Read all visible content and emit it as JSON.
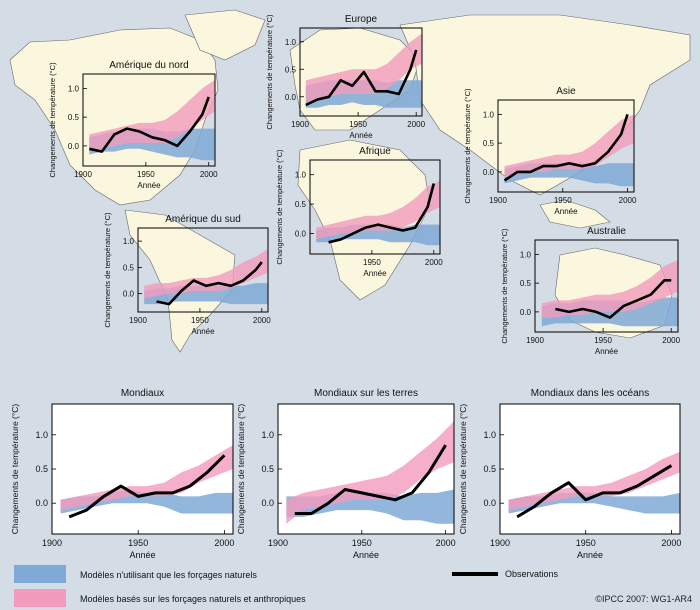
{
  "colors": {
    "background": "#d4dde6",
    "land": "#fbf7df",
    "natural_band": "#7fa9d6",
    "anthro_band": "#f29bbd",
    "observations": "#000000"
  },
  "legend": {
    "natural": "Modèles n'utilisant que les forçages naturels",
    "anthro": "Modèles basés sur les forçages naturels et anthropiques",
    "observations": "Observations"
  },
  "credit": "©IPCC  2007: WG1-AR4",
  "chart_data": [
    {
      "type": "area",
      "title": "Amérique du nord",
      "xlabel": "Année",
      "ylabel": "Changements de température (°C)",
      "xlim": [
        1900,
        2005
      ],
      "ylim": [
        -0.35,
        1.25
      ],
      "xticks": [
        1900,
        1950,
        2000
      ],
      "yticks": [
        0.0,
        0.5,
        1.0
      ],
      "x": [
        1905,
        1915,
        1925,
        1935,
        1945,
        1955,
        1965,
        1975,
        1985,
        1995,
        2005
      ],
      "natural": {
        "low": [
          -0.15,
          -0.1,
          -0.1,
          -0.05,
          -0.05,
          -0.1,
          -0.15,
          -0.2,
          -0.2,
          -0.25,
          -0.25
        ],
        "high": [
          0.15,
          0.2,
          0.25,
          0.3,
          0.3,
          0.3,
          0.25,
          0.25,
          0.3,
          0.3,
          0.3
        ]
      },
      "anthro": {
        "low": [
          -0.1,
          -0.05,
          0.0,
          0.05,
          0.05,
          0.05,
          0.05,
          0.15,
          0.3,
          0.45,
          0.6
        ],
        "high": [
          0.2,
          0.25,
          0.3,
          0.35,
          0.4,
          0.4,
          0.45,
          0.6,
          0.8,
          1.0,
          1.15
        ]
      },
      "observations": {
        "x": [
          1905,
          1915,
          1925,
          1935,
          1945,
          1955,
          1965,
          1975,
          1985,
          1995,
          2000
        ],
        "y": [
          -0.05,
          -0.1,
          0.2,
          0.3,
          0.25,
          0.15,
          0.1,
          0.0,
          0.25,
          0.55,
          0.85
        ]
      }
    },
    {
      "type": "area",
      "title": "Europe",
      "xlabel": "Année",
      "ylabel": "Changements de température (°C)",
      "xlim": [
        1900,
        2005
      ],
      "ylim": [
        -0.35,
        1.25
      ],
      "xticks": [
        1900,
        1950,
        2000
      ],
      "yticks": [
        0.0,
        0.5,
        1.0
      ],
      "x": [
        1905,
        1915,
        1925,
        1935,
        1945,
        1955,
        1965,
        1975,
        1985,
        1995,
        2005
      ],
      "natural": {
        "low": [
          -0.2,
          -0.2,
          -0.15,
          -0.15,
          -0.1,
          -0.15,
          -0.15,
          -0.2,
          -0.2,
          -0.2,
          -0.2
        ],
        "high": [
          0.2,
          0.25,
          0.3,
          0.3,
          0.3,
          0.3,
          0.3,
          0.25,
          0.3,
          0.3,
          0.3
        ]
      },
      "anthro": {
        "low": [
          -0.1,
          -0.05,
          0.0,
          0.05,
          0.05,
          0.05,
          0.05,
          0.15,
          0.3,
          0.5,
          0.6
        ],
        "high": [
          0.3,
          0.35,
          0.4,
          0.45,
          0.5,
          0.5,
          0.5,
          0.6,
          0.8,
          1.0,
          1.15
        ]
      },
      "observations": {
        "x": [
          1905,
          1915,
          1925,
          1935,
          1945,
          1955,
          1965,
          1975,
          1985,
          1995,
          2000
        ],
        "y": [
          -0.15,
          -0.05,
          0.0,
          0.3,
          0.2,
          0.45,
          0.1,
          0.1,
          0.05,
          0.5,
          0.85
        ]
      }
    },
    {
      "type": "area",
      "title": "Asie",
      "xlabel": "Année",
      "ylabel": "Changements de température (°C)",
      "xlim": [
        1900,
        2005
      ],
      "ylim": [
        -0.35,
        1.25
      ],
      "xticks": [
        1900,
        1950,
        2000
      ],
      "yticks": [
        0.0,
        0.5,
        1.0
      ],
      "x": [
        1905,
        1915,
        1925,
        1935,
        1945,
        1955,
        1965,
        1975,
        1985,
        1995,
        2005
      ],
      "natural": {
        "low": [
          -0.2,
          -0.15,
          -0.1,
          -0.1,
          -0.1,
          -0.1,
          -0.15,
          -0.2,
          -0.2,
          -0.25,
          -0.25
        ],
        "high": [
          0.05,
          0.1,
          0.15,
          0.15,
          0.15,
          0.15,
          0.15,
          0.1,
          0.15,
          0.15,
          0.15
        ]
      },
      "anthro": {
        "low": [
          -0.1,
          -0.05,
          0.0,
          0.0,
          0.05,
          0.05,
          0.05,
          0.1,
          0.25,
          0.4,
          0.5
        ],
        "high": [
          0.1,
          0.15,
          0.2,
          0.25,
          0.3,
          0.3,
          0.35,
          0.5,
          0.7,
          0.9,
          1.0
        ]
      },
      "observations": {
        "x": [
          1905,
          1915,
          1925,
          1935,
          1945,
          1955,
          1965,
          1975,
          1985,
          1995,
          2000
        ],
        "y": [
          -0.15,
          0.0,
          0.0,
          0.1,
          0.1,
          0.15,
          0.1,
          0.15,
          0.35,
          0.65,
          1.0
        ]
      }
    },
    {
      "type": "area",
      "title": "Afrique",
      "xlabel": "Année",
      "ylabel": "Changements de température (°C)",
      "xlim": [
        1900,
        2005
      ],
      "ylim": [
        -0.35,
        1.25
      ],
      "xticks": [
        1950,
        2000
      ],
      "yticks": [
        0.0,
        0.5,
        1.0
      ],
      "x": [
        1905,
        1915,
        1925,
        1935,
        1945,
        1955,
        1965,
        1975,
        1985,
        1995,
        2005
      ],
      "natural": {
        "low": [
          -0.15,
          -0.15,
          -0.1,
          -0.1,
          -0.1,
          -0.1,
          -0.15,
          -0.15,
          -0.15,
          -0.2,
          -0.2
        ],
        "high": [
          0.05,
          0.1,
          0.1,
          0.15,
          0.15,
          0.15,
          0.15,
          0.1,
          0.15,
          0.15,
          0.15
        ]
      },
      "anthro": {
        "low": [
          -0.1,
          -0.05,
          0.0,
          0.0,
          0.05,
          0.05,
          0.05,
          0.1,
          0.2,
          0.35,
          0.45
        ],
        "high": [
          0.1,
          0.15,
          0.2,
          0.25,
          0.3,
          0.3,
          0.35,
          0.45,
          0.6,
          0.8,
          0.9
        ]
      },
      "observations": {
        "x": [
          1915,
          1925,
          1935,
          1945,
          1955,
          1965,
          1975,
          1985,
          1995,
          2000
        ],
        "y": [
          -0.15,
          -0.1,
          0.0,
          0.1,
          0.15,
          0.1,
          0.05,
          0.1,
          0.45,
          0.85
        ]
      }
    },
    {
      "type": "area",
      "title": "Amérique du sud",
      "xlabel": "Année",
      "ylabel": "Changements de température (°C)",
      "xlim": [
        1900,
        2005
      ],
      "ylim": [
        -0.35,
        1.25
      ],
      "xticks": [
        1900,
        1950,
        2000
      ],
      "yticks": [
        0.0,
        0.5,
        1.0
      ],
      "x": [
        1905,
        1915,
        1925,
        1935,
        1945,
        1955,
        1965,
        1975,
        1985,
        1995,
        2005
      ],
      "natural": {
        "low": [
          -0.2,
          -0.2,
          -0.15,
          -0.15,
          -0.15,
          -0.15,
          -0.15,
          -0.2,
          -0.2,
          -0.2,
          -0.2
        ],
        "high": [
          0.05,
          0.1,
          0.1,
          0.15,
          0.15,
          0.15,
          0.15,
          0.15,
          0.15,
          0.2,
          0.2
        ]
      },
      "anthro": {
        "low": [
          -0.1,
          -0.05,
          0.0,
          0.0,
          0.05,
          0.05,
          0.05,
          0.1,
          0.2,
          0.3,
          0.4
        ],
        "high": [
          0.15,
          0.2,
          0.2,
          0.25,
          0.3,
          0.3,
          0.35,
          0.45,
          0.6,
          0.7,
          0.85
        ]
      },
      "observations": {
        "x": [
          1915,
          1925,
          1935,
          1945,
          1955,
          1965,
          1975,
          1985,
          1995,
          2000
        ],
        "y": [
          -0.15,
          -0.2,
          0.05,
          0.25,
          0.15,
          0.2,
          0.15,
          0.25,
          0.45,
          0.6
        ]
      }
    },
    {
      "type": "area",
      "title": "Australie",
      "xlabel": "Année",
      "ylabel": "Changements de température (°C)",
      "xlim": [
        1900,
        2005
      ],
      "ylim": [
        -0.35,
        1.25
      ],
      "xticks": [
        1900,
        1950,
        2000
      ],
      "yticks": [
        0.0,
        0.5,
        1.0
      ],
      "x": [
        1905,
        1915,
        1925,
        1935,
        1945,
        1955,
        1965,
        1975,
        1985,
        1995,
        2005
      ],
      "natural": {
        "low": [
          -0.25,
          -0.2,
          -0.2,
          -0.2,
          -0.2,
          -0.2,
          -0.25,
          -0.25,
          -0.25,
          -0.25,
          -0.25
        ],
        "high": [
          0.1,
          0.15,
          0.15,
          0.2,
          0.2,
          0.2,
          0.2,
          0.15,
          0.2,
          0.25,
          0.25
        ]
      },
      "anthro": {
        "low": [
          -0.1,
          -0.1,
          -0.05,
          -0.05,
          0.0,
          0.0,
          0.0,
          0.05,
          0.15,
          0.25,
          0.35
        ],
        "high": [
          0.15,
          0.2,
          0.2,
          0.25,
          0.3,
          0.3,
          0.35,
          0.45,
          0.6,
          0.8,
          0.9
        ]
      },
      "observations": {
        "x": [
          1915,
          1925,
          1935,
          1945,
          1955,
          1965,
          1975,
          1985,
          1995,
          2000
        ],
        "y": [
          0.05,
          0.0,
          0.05,
          0.0,
          -0.1,
          0.1,
          0.2,
          0.3,
          0.55,
          0.55
        ]
      }
    },
    {
      "type": "area",
      "title": "Mondiaux",
      "xlabel": "Année",
      "ylabel": "Changements de température (°C)",
      "xlim": [
        1900,
        2005
      ],
      "ylim": [
        -0.45,
        1.45
      ],
      "xticks": [
        1900,
        1950,
        2000
      ],
      "yticks": [
        0.0,
        0.5,
        1.0
      ],
      "x": [
        1905,
        1915,
        1925,
        1935,
        1945,
        1955,
        1965,
        1975,
        1985,
        1995,
        2005
      ],
      "natural": {
        "low": [
          -0.15,
          -0.1,
          -0.05,
          0.0,
          0.0,
          0.0,
          -0.05,
          -0.15,
          -0.15,
          -0.15,
          -0.15
        ],
        "high": [
          0.05,
          0.1,
          0.1,
          0.15,
          0.2,
          0.15,
          0.15,
          0.1,
          0.1,
          0.15,
          0.15
        ]
      },
      "anthro": {
        "low": [
          -0.1,
          -0.05,
          0.0,
          0.05,
          0.1,
          0.1,
          0.1,
          0.15,
          0.3,
          0.4,
          0.5
        ],
        "high": [
          0.05,
          0.1,
          0.15,
          0.2,
          0.25,
          0.25,
          0.3,
          0.45,
          0.55,
          0.7,
          0.85
        ]
      },
      "observations": {
        "x": [
          1910,
          1920,
          1930,
          1940,
          1950,
          1960,
          1970,
          1980,
          1990,
          2000
        ],
        "y": [
          -0.2,
          -0.1,
          0.1,
          0.25,
          0.1,
          0.15,
          0.15,
          0.25,
          0.45,
          0.7
        ]
      }
    },
    {
      "type": "area",
      "title": "Mondiaux sur les terres",
      "xlabel": "Année",
      "ylabel": "Changements de température (°C)",
      "xlim": [
        1900,
        2005
      ],
      "ylim": [
        -0.45,
        1.45
      ],
      "xticks": [
        1900,
        1950,
        2000
      ],
      "yticks": [
        0.0,
        0.5,
        1.0
      ],
      "x": [
        1905,
        1915,
        1925,
        1935,
        1945,
        1955,
        1965,
        1975,
        1985,
        1995,
        2005
      ],
      "natural": {
        "low": [
          -0.2,
          -0.2,
          -0.15,
          -0.1,
          -0.1,
          -0.1,
          -0.15,
          -0.25,
          -0.25,
          -0.3,
          -0.3
        ],
        "high": [
          0.1,
          0.1,
          0.1,
          0.15,
          0.2,
          0.15,
          0.15,
          0.1,
          0.15,
          0.15,
          0.2
        ]
      },
      "anthro": {
        "low": [
          -0.3,
          -0.1,
          -0.05,
          0.0,
          0.05,
          0.05,
          0.05,
          0.15,
          0.35,
          0.5,
          0.6
        ],
        "high": [
          0.05,
          0.15,
          0.2,
          0.25,
          0.3,
          0.35,
          0.4,
          0.55,
          0.75,
          0.95,
          1.2
        ]
      },
      "observations": {
        "x": [
          1910,
          1920,
          1930,
          1940,
          1950,
          1960,
          1970,
          1980,
          1990,
          2000
        ],
        "y": [
          -0.15,
          -0.15,
          0.0,
          0.2,
          0.15,
          0.1,
          0.05,
          0.15,
          0.45,
          0.85
        ]
      }
    },
    {
      "type": "area",
      "title": "Mondiaux dans les océans",
      "xlabel": "Année",
      "ylabel": "Changements de température (°C)",
      "xlim": [
        1900,
        2005
      ],
      "ylim": [
        -0.45,
        1.45
      ],
      "xticks": [
        1900,
        1950,
        2000
      ],
      "yticks": [
        0.0,
        0.5,
        1.0
      ],
      "x": [
        1905,
        1915,
        1925,
        1935,
        1945,
        1955,
        1965,
        1975,
        1985,
        1995,
        2005
      ],
      "natural": {
        "low": [
          -0.15,
          -0.1,
          -0.05,
          0.0,
          0.0,
          0.0,
          -0.05,
          -0.1,
          -0.15,
          -0.15,
          -0.15
        ],
        "high": [
          0.05,
          0.1,
          0.1,
          0.15,
          0.15,
          0.15,
          0.1,
          0.1,
          0.1,
          0.1,
          0.15
        ]
      },
      "anthro": {
        "low": [
          -0.1,
          -0.05,
          0.0,
          0.05,
          0.1,
          0.1,
          0.1,
          0.15,
          0.25,
          0.35,
          0.45
        ],
        "high": [
          0.05,
          0.1,
          0.15,
          0.2,
          0.25,
          0.25,
          0.3,
          0.4,
          0.5,
          0.65,
          0.75
        ]
      },
      "observations": {
        "x": [
          1910,
          1920,
          1930,
          1940,
          1950,
          1960,
          1970,
          1980,
          1990,
          2000
        ],
        "y": [
          -0.2,
          -0.05,
          0.15,
          0.3,
          0.05,
          0.15,
          0.15,
          0.25,
          0.4,
          0.55
        ]
      }
    }
  ]
}
